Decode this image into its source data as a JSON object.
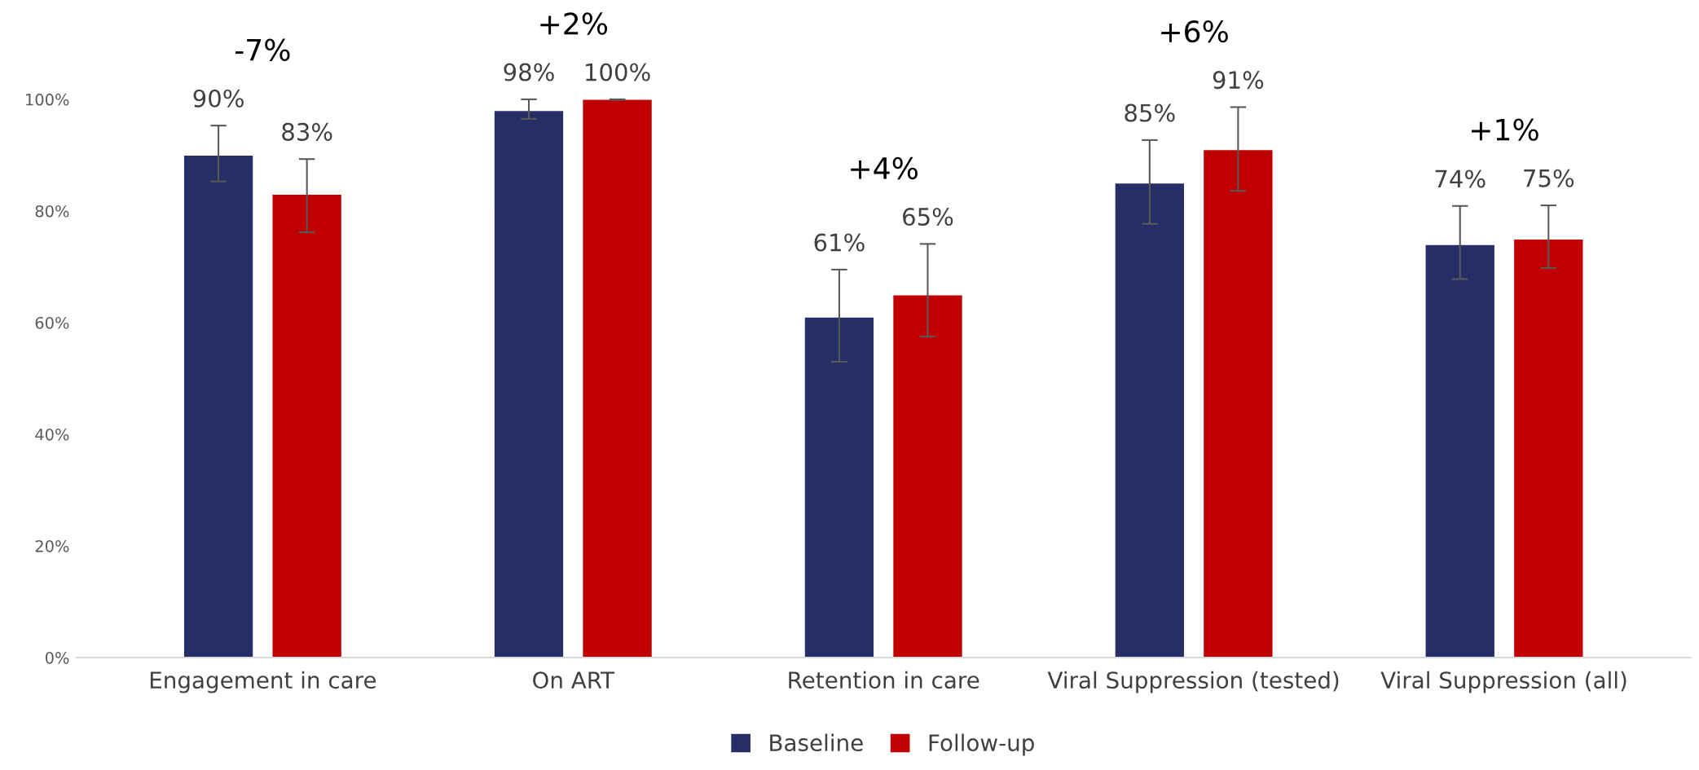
{
  "chart_data": {
    "type": "bar",
    "categories": [
      "Engagement in care",
      "On ART",
      "Retention in care",
      "Viral Suppression (tested)",
      "Viral Suppression (all)"
    ],
    "series": [
      {
        "name": "Baseline",
        "color": "#252e66",
        "values": [
          90,
          98,
          61,
          85,
          74
        ],
        "value_labels": [
          "90%",
          "98%",
          "61%",
          "85%",
          "74%"
        ],
        "errors": [
          [
            85.3,
            95.3
          ],
          [
            96.5,
            100
          ],
          [
            53.0,
            69.5
          ],
          [
            77.7,
            92.7
          ],
          [
            67.8,
            80.9
          ]
        ]
      },
      {
        "name": "Follow-up",
        "color": "#c00000",
        "values": [
          83,
          100,
          65,
          91,
          75
        ],
        "value_labels": [
          "83%",
          "100%",
          "65%",
          "91%",
          "75%"
        ],
        "errors": [
          [
            76.2,
            89.3
          ],
          [
            99.9,
            100
          ],
          [
            57.5,
            74.1
          ],
          [
            83.6,
            98.6
          ],
          [
            69.8,
            81.0
          ]
        ]
      }
    ],
    "annotations": [
      "-7%",
      "+2%",
      "+4%",
      "+6%",
      "+1%"
    ],
    "ylim": [
      0,
      100
    ],
    "yticks": [
      {
        "value": 0,
        "label": "0%"
      },
      {
        "value": 20,
        "label": "20%"
      },
      {
        "value": 40,
        "label": "40%"
      },
      {
        "value": 60,
        "label": "60%"
      },
      {
        "value": 80,
        "label": "80%"
      },
      {
        "value": 100,
        "label": "100%"
      }
    ],
    "legend": "bottom"
  }
}
